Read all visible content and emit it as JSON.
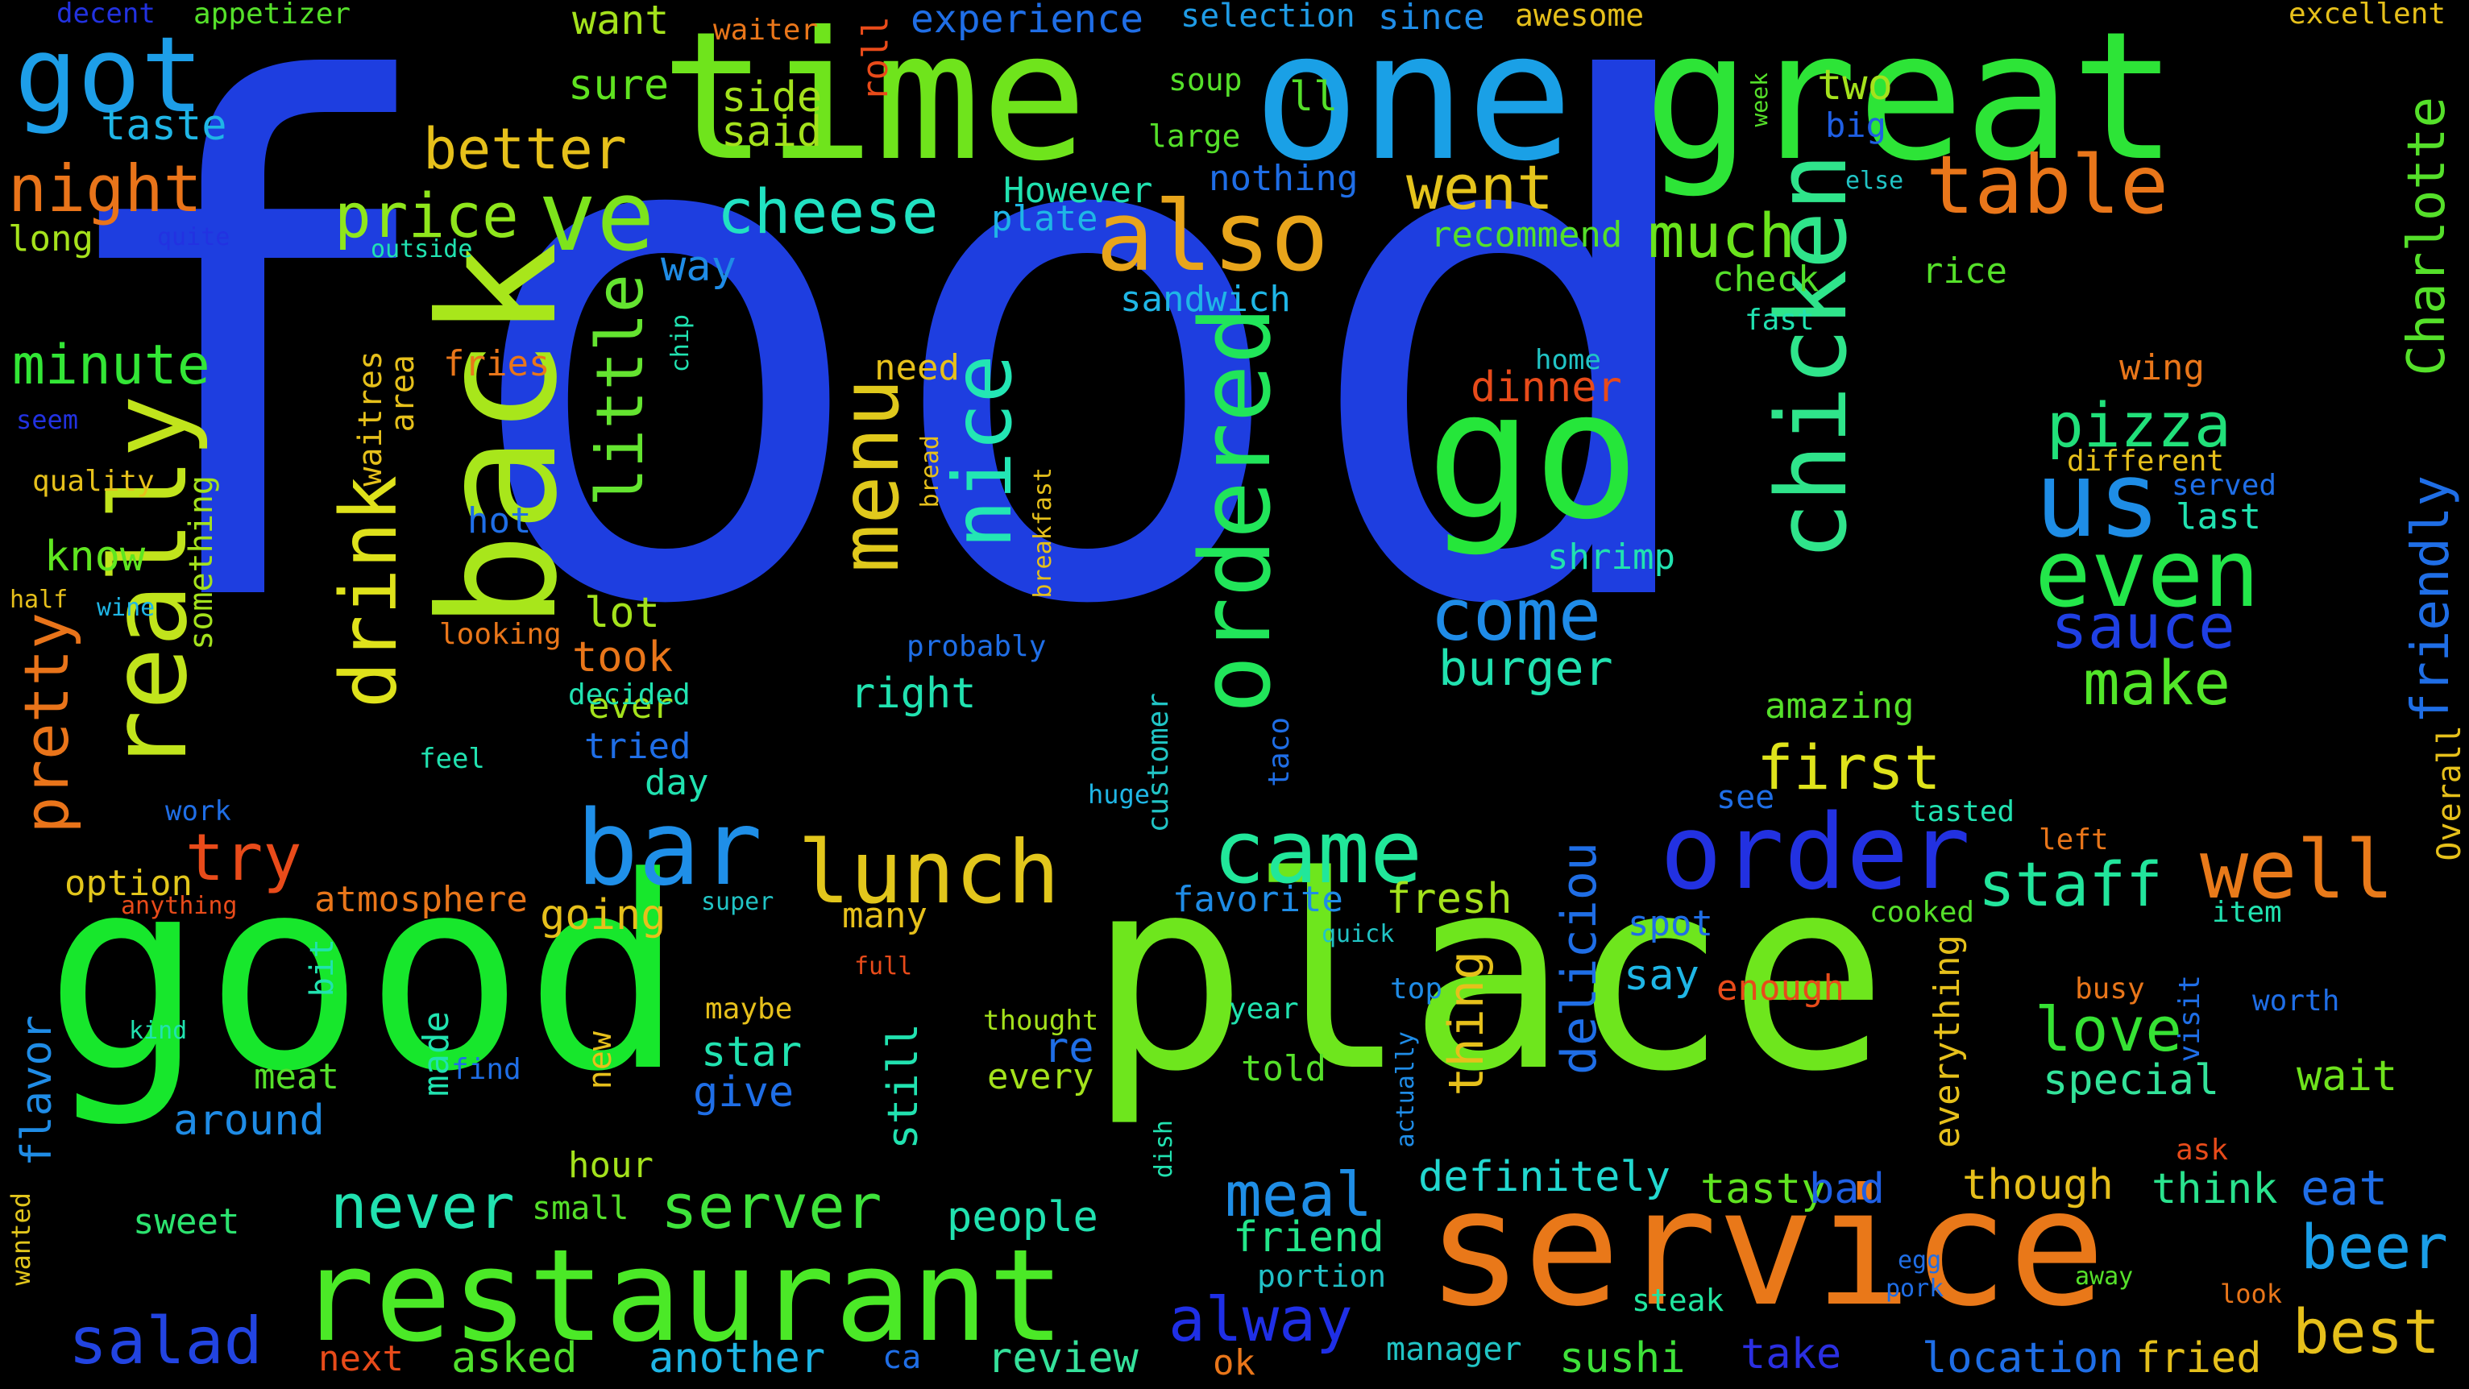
{
  "words": [
    {
      "text": "food",
      "color": "#1e3ee0"
    },
    {
      "text": "good",
      "color": "#17e72c"
    },
    {
      "text": "place",
      "color": "#6ee61d"
    },
    {
      "text": "time",
      "color": "#6fe41c"
    },
    {
      "text": "one",
      "color": "#1aa0e6"
    },
    {
      "text": "great",
      "color": "#2de437"
    },
    {
      "text": "service",
      "color": "#e97819"
    },
    {
      "text": "back",
      "color": "#a8e61b"
    },
    {
      "text": "restaurant",
      "color": "#4be927"
    },
    {
      "text": "ordered",
      "color": "#21e55a"
    },
    {
      "text": "chicken",
      "color": "#2fe48b"
    },
    {
      "text": "really",
      "color": "#c1e41c"
    },
    {
      "text": "go",
      "color": "#25e63a"
    },
    {
      "text": "also",
      "color": "#e8a51b"
    },
    {
      "text": "menu",
      "color": "#e0c91c"
    },
    {
      "text": "nice",
      "color": "#23e6b4"
    },
    {
      "text": "table",
      "color": "#e9761a"
    },
    {
      "text": "got",
      "color": "#1d9ee8"
    },
    {
      "text": "ve",
      "color": "#7de41c"
    },
    {
      "text": "drink",
      "color": "#dfe21b"
    },
    {
      "text": "little",
      "color": "#64e430"
    },
    {
      "text": "bar",
      "color": "#1f8fe8"
    },
    {
      "text": "lunch",
      "color": "#e2c61c"
    },
    {
      "text": "came",
      "color": "#21e79a"
    },
    {
      "text": "order",
      "color": "#2231e1"
    },
    {
      "text": "well",
      "color": "#e97a1a"
    },
    {
      "text": "us",
      "color": "#1e8de6"
    },
    {
      "text": "even",
      "color": "#23e64a"
    },
    {
      "text": "pretty",
      "color": "#e9741a"
    },
    {
      "text": "cheese",
      "color": "#21e2c2"
    },
    {
      "text": "night",
      "color": "#e9741a"
    },
    {
      "text": "price",
      "color": "#8fe61c"
    },
    {
      "text": "went",
      "color": "#e5c41c"
    },
    {
      "text": "much",
      "color": "#6ae41c"
    },
    {
      "text": "come",
      "color": "#1f8ce8"
    },
    {
      "text": "first",
      "color": "#dfe31b"
    },
    {
      "text": "pizza",
      "color": "#21e07a"
    },
    {
      "text": "sauce",
      "color": "#1f3fe3"
    },
    {
      "text": "make",
      "color": "#52e629"
    },
    {
      "text": "staff",
      "color": "#22e59c"
    },
    {
      "text": "love",
      "color": "#36e234"
    },
    {
      "text": "special",
      "color": "#33e39a"
    },
    {
      "text": "wait",
      "color": "#6ee21c"
    },
    {
      "text": "best",
      "color": "#e6c01b"
    },
    {
      "text": "beer",
      "color": "#1a9ee8"
    },
    {
      "text": "eat",
      "color": "#1f6ee8"
    },
    {
      "text": "though",
      "color": "#e6bf1b"
    },
    {
      "text": "think",
      "color": "#2ae38e"
    },
    {
      "text": "fried",
      "color": "#e5c01c"
    },
    {
      "text": "location",
      "color": "#1f6ee6"
    },
    {
      "text": "take",
      "color": "#2b2fe1"
    },
    {
      "text": "sushi",
      "color": "#3fe23a"
    },
    {
      "text": "manager",
      "color": "#21c4c5"
    },
    {
      "text": "steak",
      "color": "#21e6a0"
    },
    {
      "text": "portion",
      "color": "#21c0c6"
    },
    {
      "text": "friend",
      "color": "#23e68a"
    },
    {
      "text": "meal",
      "color": "#1f8ee6"
    },
    {
      "text": "alway",
      "color": "#1f2fe6"
    },
    {
      "text": "definitely",
      "color": "#22d8d0"
    },
    {
      "text": "tasty",
      "color": "#5fe320"
    },
    {
      "text": "bad",
      "color": "#1f5fe4"
    },
    {
      "text": "server",
      "color": "#3ee33b"
    },
    {
      "text": "never",
      "color": "#21e2b0"
    },
    {
      "text": "salad",
      "color": "#2244e1"
    },
    {
      "text": "asked",
      "color": "#50e12d"
    },
    {
      "text": "another",
      "color": "#1fb6e6"
    },
    {
      "text": "review",
      "color": "#35e19b"
    },
    {
      "text": "next",
      "color": "#e84b1a"
    },
    {
      "text": "ok",
      "color": "#e9761a"
    },
    {
      "text": "ca",
      "color": "#1f6ee6"
    },
    {
      "text": "try",
      "color": "#e94b1a"
    },
    {
      "text": "minute",
      "color": "#33e636"
    },
    {
      "text": "know",
      "color": "#5fe620"
    },
    {
      "text": "option",
      "color": "#e2c61c"
    },
    {
      "text": "flavor",
      "color": "#1f8ce6"
    },
    {
      "text": "sweet",
      "color": "#2ce36f"
    },
    {
      "text": "wanted",
      "color": "#e2c61c"
    },
    {
      "text": "long",
      "color": "#a6e21c"
    },
    {
      "text": "taste",
      "color": "#1fb6e6"
    },
    {
      "text": "decent",
      "color": "#2232e1"
    },
    {
      "text": "appetizer",
      "color": "#55e02a"
    },
    {
      "text": "want",
      "color": "#a4e21c"
    },
    {
      "text": "sure",
      "color": "#5fe320"
    },
    {
      "text": "side",
      "color": "#a4e21c"
    },
    {
      "text": "said",
      "color": "#a4e21c"
    },
    {
      "text": "better",
      "color": "#e6c01b"
    },
    {
      "text": "roll",
      "color": "#e94b1a"
    },
    {
      "text": "experience",
      "color": "#1f6ee6"
    },
    {
      "text": "selection",
      "color": "#1f9ce6"
    },
    {
      "text": "since",
      "color": "#1f8ce6"
    },
    {
      "text": "awesome",
      "color": "#e6c01b"
    },
    {
      "text": "excellent",
      "color": "#e6c01b"
    },
    {
      "text": "waiter",
      "color": "#e9761a"
    },
    {
      "text": "soup",
      "color": "#55e02a"
    },
    {
      "text": "ll",
      "color": "#55e02a"
    },
    {
      "text": "large",
      "color": "#55e02a"
    },
    {
      "text": "However",
      "color": "#21e2b0"
    },
    {
      "text": "plate",
      "color": "#1fb6e6"
    },
    {
      "text": "nothing",
      "color": "#1f6ee6"
    },
    {
      "text": "two",
      "color": "#a4e21c"
    },
    {
      "text": "big",
      "color": "#1f5fe4"
    },
    {
      "text": "else",
      "color": "#21c4c5"
    },
    {
      "text": "week",
      "color": "#55e02a"
    },
    {
      "text": "Charlotte",
      "color": "#55e02a"
    },
    {
      "text": "friendly",
      "color": "#1f6ee6"
    },
    {
      "text": "Overall",
      "color": "#e6c01b"
    },
    {
      "text": "recommend",
      "color": "#55e02a"
    },
    {
      "text": "sandwich",
      "color": "#1fb6e6"
    },
    {
      "text": "way",
      "color": "#1f8ce6"
    },
    {
      "text": "outside",
      "color": "#21e2b0"
    },
    {
      "text": "quite",
      "color": "#2232e1"
    },
    {
      "text": "check",
      "color": "#55e02a"
    },
    {
      "text": "fast",
      "color": "#21e2b0"
    },
    {
      "text": "rice",
      "color": "#55e02a"
    },
    {
      "text": "home",
      "color": "#21c4c5"
    },
    {
      "text": "dinner",
      "color": "#e84b1a"
    },
    {
      "text": "wing",
      "color": "#e9761a"
    },
    {
      "text": "different",
      "color": "#e6c01b"
    },
    {
      "text": "served",
      "color": "#1f6ee6"
    },
    {
      "text": "last",
      "color": "#21e2b0"
    },
    {
      "text": "shrimp",
      "color": "#21e2b0"
    },
    {
      "text": "burger",
      "color": "#21e2b0"
    },
    {
      "text": "amazing",
      "color": "#55e02a"
    },
    {
      "text": "see",
      "color": "#1f6ee6"
    },
    {
      "text": "tasted",
      "color": "#21e2b0"
    },
    {
      "text": "left",
      "color": "#e9761a"
    },
    {
      "text": "cooked",
      "color": "#55e02a"
    },
    {
      "text": "item",
      "color": "#21e2b0"
    },
    {
      "text": "visit",
      "color": "#1f6ee6"
    },
    {
      "text": "need",
      "color": "#e6c01b"
    },
    {
      "text": "bread",
      "color": "#e6c01b"
    },
    {
      "text": "breakfast",
      "color": "#e6c01b"
    },
    {
      "text": "probably",
      "color": "#1f6ee6"
    },
    {
      "text": "right",
      "color": "#21e2b0"
    },
    {
      "text": "customer",
      "color": "#21c4c5"
    },
    {
      "text": "taco",
      "color": "#1f6ee6"
    },
    {
      "text": "huge",
      "color": "#1fb6e6"
    },
    {
      "text": "favorite",
      "color": "#1f8ce6"
    },
    {
      "text": "fresh",
      "color": "#a4e21c"
    },
    {
      "text": "thing",
      "color": "#e6c01b"
    },
    {
      "text": "deliciou",
      "color": "#1f6ee6"
    },
    {
      "text": "spot",
      "color": "#1f6ee6"
    },
    {
      "text": "say",
      "color": "#1fb6e6"
    },
    {
      "text": "enough",
      "color": "#e84b1a"
    },
    {
      "text": "busy",
      "color": "#e9761a"
    },
    {
      "text": "worth",
      "color": "#1f6ee6"
    },
    {
      "text": "ask",
      "color": "#e84b1a"
    },
    {
      "text": "everything",
      "color": "#e6c01b"
    },
    {
      "text": "quick",
      "color": "#21c4c5"
    },
    {
      "text": "top",
      "color": "#1f8ce6"
    },
    {
      "text": "year",
      "color": "#21e2b0"
    },
    {
      "text": "told",
      "color": "#55e02a"
    },
    {
      "text": "actually",
      "color": "#1f8ce6"
    },
    {
      "text": "dish",
      "color": "#21e2b0"
    },
    {
      "text": "egg",
      "color": "#1f6ee6"
    },
    {
      "text": "pork",
      "color": "#1f6ee6"
    },
    {
      "text": "away",
      "color": "#55e02a"
    },
    {
      "text": "look",
      "color": "#e9761a"
    },
    {
      "text": "many",
      "color": "#e6c01b"
    },
    {
      "text": "full",
      "color": "#e84b1a"
    },
    {
      "text": "thought",
      "color": "#a4e21c"
    },
    {
      "text": "every",
      "color": "#a4e21c"
    },
    {
      "text": "re",
      "color": "#1f6ee6"
    },
    {
      "text": "still",
      "color": "#21e2b0"
    },
    {
      "text": "people",
      "color": "#21e2b0"
    },
    {
      "text": "maybe",
      "color": "#e6c01b"
    },
    {
      "text": "star",
      "color": "#21e2b0"
    },
    {
      "text": "give",
      "color": "#1f6ee6"
    },
    {
      "text": "super",
      "color": "#21c4c5"
    },
    {
      "text": "going",
      "color": "#e6c01b"
    },
    {
      "text": "atmosphere",
      "color": "#e9761a"
    },
    {
      "text": "bit",
      "color": "#21e2b0"
    },
    {
      "text": "made",
      "color": "#21e2b0"
    },
    {
      "text": "new",
      "color": "#e6c01b"
    },
    {
      "text": "hour",
      "color": "#a4e21c"
    },
    {
      "text": "small",
      "color": "#55e02a"
    },
    {
      "text": "around",
      "color": "#1f8ce6"
    },
    {
      "text": "meat",
      "color": "#55e02a"
    },
    {
      "text": "find",
      "color": "#1f6ee6"
    },
    {
      "text": "kind",
      "color": "#21e2b0"
    },
    {
      "text": "anything",
      "color": "#e84b1a"
    },
    {
      "text": "day",
      "color": "#21e2b0"
    },
    {
      "text": "tried",
      "color": "#1f6ee6"
    },
    {
      "text": "ever",
      "color": "#a4e21c"
    },
    {
      "text": "decided",
      "color": "#21e2b0"
    },
    {
      "text": "took",
      "color": "#e9761a"
    },
    {
      "text": "lot",
      "color": "#a4e21c"
    },
    {
      "text": "looking",
      "color": "#e9761a"
    },
    {
      "text": "hot",
      "color": "#1f6ee6"
    },
    {
      "text": "fries",
      "color": "#e9761a"
    },
    {
      "text": "area",
      "color": "#e6c01b"
    },
    {
      "text": "waitres",
      "color": "#e6c01b"
    },
    {
      "text": "feel",
      "color": "#21e2b0"
    },
    {
      "text": "work",
      "color": "#1f6ee6"
    },
    {
      "text": "chip",
      "color": "#21e2b0"
    },
    {
      "text": "something",
      "color": "#a4e21c"
    },
    {
      "text": "quality",
      "color": "#e6c01b"
    },
    {
      "text": "seem",
      "color": "#2232e1"
    },
    {
      "text": "half",
      "color": "#e6c01b"
    },
    {
      "text": "wine",
      "color": "#1fb6e6"
    }
  ]
}
